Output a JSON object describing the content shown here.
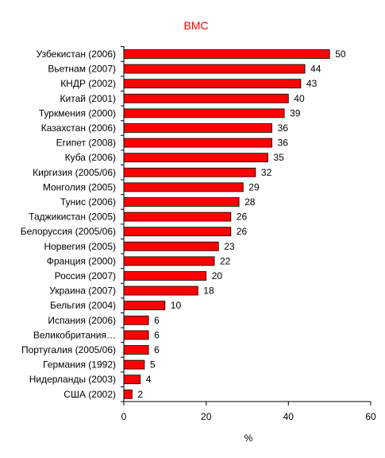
{
  "chart_data": {
    "type": "bar",
    "orientation": "horizontal",
    "title": "ВМС",
    "title_color": "#ff0000",
    "bar_color": "#ff0000",
    "bar_edge_color": "#000000",
    "categories": [
      "Узбекистан (2006)",
      "Вьетнам (2007)",
      "КНДР (2002)",
      "Китай (2001)",
      "Туркмения (2000)",
      "Казахстан (2006)",
      "Египет (2008)",
      "Куба (2006)",
      "Киргизия (2005/06)",
      "Монголия (2005)",
      "Тунис (2006)",
      "Таджикистан (2005)",
      "Белоруссия (2005/06)",
      "Норвегия (2005)",
      "Франция (2000)",
      "Россия (2007)",
      "Украина (2007)",
      "Бельгия (2004)",
      "Испания (2006)",
      "Великобритания…",
      "Португалия (2005/06)",
      "Германия (1992)",
      "Нидерланды (2003)",
      "США (2002)"
    ],
    "values": [
      50,
      44,
      43,
      40,
      39,
      36,
      36,
      35,
      32,
      29,
      28,
      26,
      26,
      23,
      22,
      20,
      18,
      10,
      6,
      6,
      6,
      5,
      4,
      2
    ],
    "xlabel": "%",
    "ylabel": "",
    "xlim": [
      0,
      60
    ],
    "xticks": [
      0,
      20,
      40,
      60
    ],
    "grid": false,
    "legend": "none"
  }
}
